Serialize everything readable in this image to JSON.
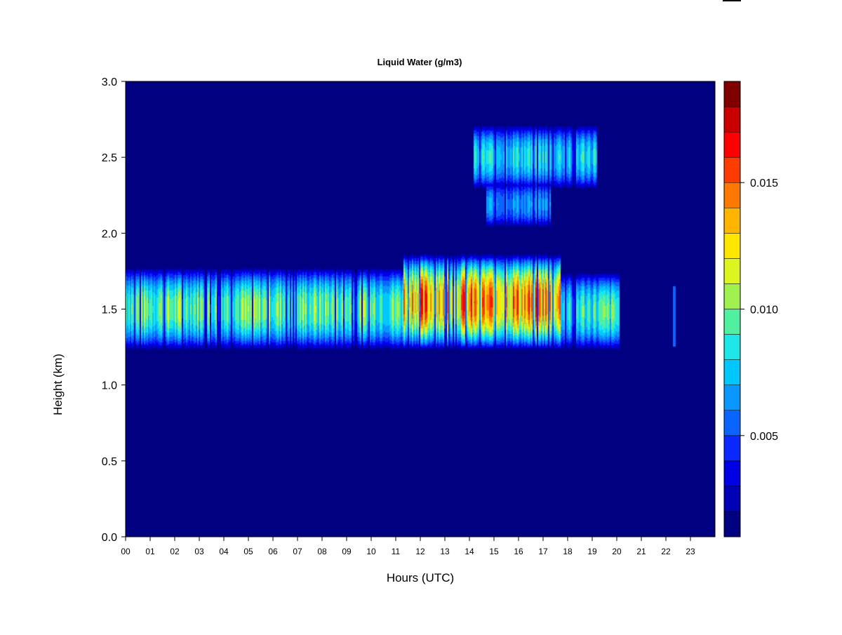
{
  "chart_data": {
    "type": "heatmap",
    "title": "Liquid Water (g/m3)",
    "xlabel": "Hours (UTC)",
    "ylabel": "Height (km)",
    "x_ticks": [
      "00",
      "01",
      "02",
      "03",
      "04",
      "05",
      "06",
      "07",
      "08",
      "09",
      "10",
      "11",
      "12",
      "13",
      "14",
      "15",
      "16",
      "17",
      "18",
      "19",
      "20",
      "21",
      "22",
      "23"
    ],
    "y_ticks": [
      "0.0",
      "0.5",
      "1.0",
      "1.5",
      "2.0",
      "2.5",
      "3.0"
    ],
    "xlim": [
      0,
      24
    ],
    "ylim": [
      0,
      3.0
    ],
    "colorbar": {
      "range": [
        0.001,
        0.019
      ],
      "tick_values": [
        0.005,
        0.01,
        0.015
      ],
      "tick_labels": [
        "0.005",
        "0.010",
        "0.015"
      ],
      "colors": [
        "#000080",
        "#0000b4",
        "#0000e6",
        "#0a28ff",
        "#0a64ff",
        "#0a96ff",
        "#00c8ff",
        "#1ee6e6",
        "#50f0a0",
        "#a0f050",
        "#dcf51e",
        "#ffe600",
        "#ffb400",
        "#ff7800",
        "#ff3c00",
        "#ff0000",
        "#c80000",
        "#800000"
      ]
    },
    "background_value": 0.001,
    "features": [
      {
        "type": "layer",
        "t_start": 0.0,
        "t_end": 11.3,
        "z_bottom": 1.22,
        "z_top": 1.78,
        "peak": 0.0115
      },
      {
        "type": "layer",
        "t_start": 11.3,
        "t_end": 17.7,
        "z_bottom": 1.22,
        "z_top": 1.87,
        "peak": 0.0165
      },
      {
        "type": "layer",
        "t_start": 17.7,
        "t_end": 20.1,
        "z_bottom": 1.22,
        "z_top": 1.75,
        "peak": 0.0105
      },
      {
        "type": "layer",
        "t_start": 14.2,
        "t_end": 19.2,
        "z_bottom": 2.28,
        "z_top": 2.72,
        "peak": 0.0095
      },
      {
        "type": "layer",
        "t_start": 14.7,
        "t_end": 17.3,
        "z_bottom": 2.03,
        "z_top": 2.35,
        "peak": 0.0075
      },
      {
        "type": "spike",
        "t": 22.35,
        "z_bottom": 1.25,
        "z_top": 1.65,
        "peak": 0.007
      }
    ]
  }
}
